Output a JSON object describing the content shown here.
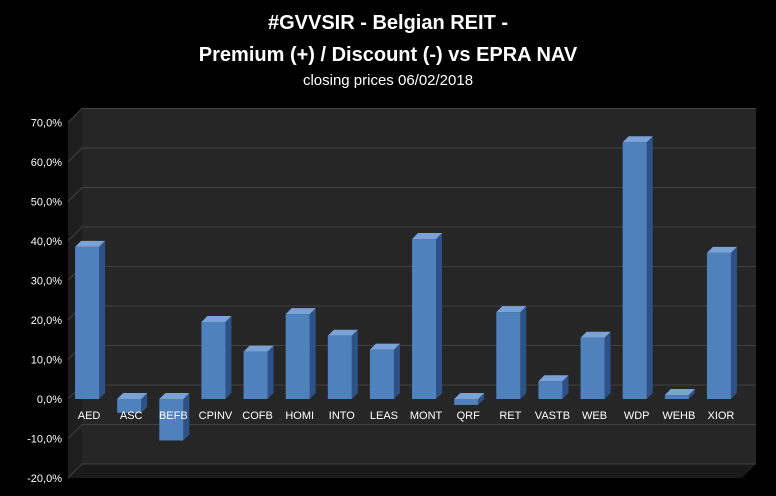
{
  "chart_data": {
    "type": "bar",
    "title": "#GVVSIR - Belgian REIT -",
    "subtitle": "Premium (+) / Discount (-) vs EPRA NAV",
    "caption": "closing prices 06/02/2018",
    "categories": [
      "AED",
      "ASC",
      "BEFB",
      "CPINV",
      "COFB",
      "HOMI",
      "INTO",
      "LEAS",
      "MONT",
      "QRF",
      "RET",
      "VASTB",
      "WEB",
      "WDP",
      "WEHB",
      "XIOR"
    ],
    "values": [
      38.5,
      -3.5,
      -10.5,
      19.5,
      12.0,
      21.5,
      16.0,
      12.5,
      40.5,
      -1.5,
      22.0,
      4.5,
      15.5,
      65.0,
      1.0,
      37.0
    ],
    "ylim": [
      -20,
      70
    ],
    "yticks": [
      70,
      60,
      50,
      40,
      30,
      20,
      10,
      0,
      -10,
      -20
    ],
    "ytick_labels": [
      "70,0%",
      "60,0%",
      "50,0%",
      "40,0%",
      "30,0%",
      "20,0%",
      "10,0%",
      "0,0%",
      "-10,0%",
      "-20,0%"
    ],
    "grid": true,
    "colors": {
      "bar_front": "#4f81bd",
      "bar_side": "#2d5288",
      "bar_top": "#7aa2d6",
      "wall": "#262626",
      "floor": "#1a1a1a",
      "grid": "#404040"
    }
  }
}
